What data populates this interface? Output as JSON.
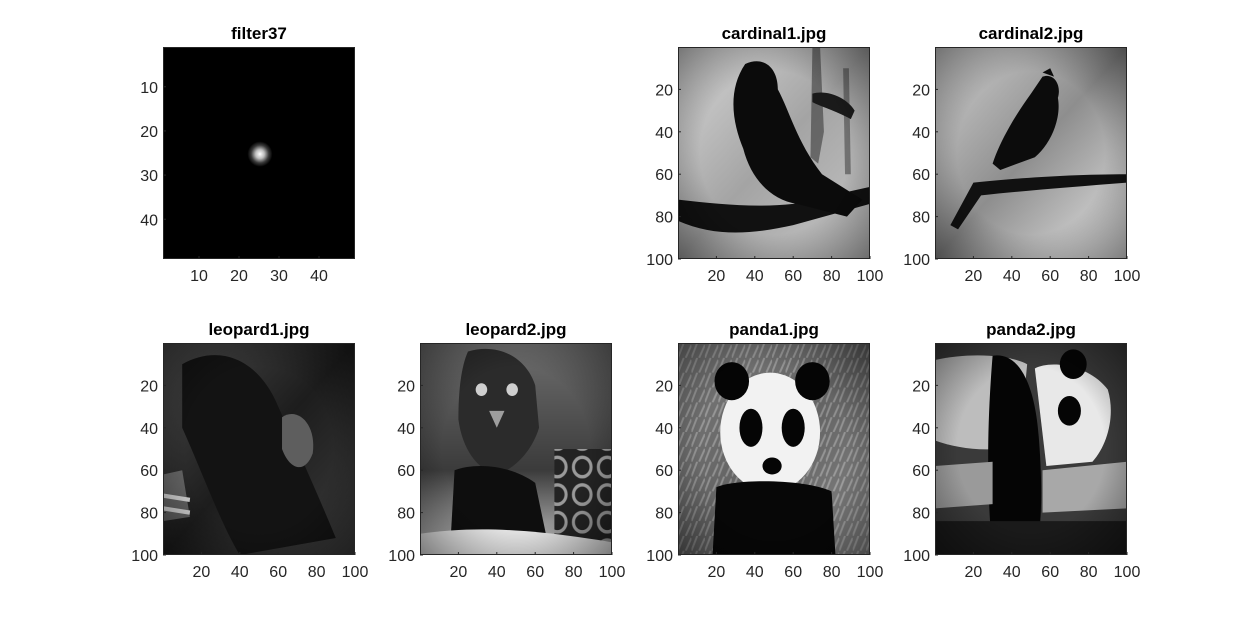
{
  "figure": {
    "background": "#ffffff",
    "colormap": "gray",
    "panels": [
      {
        "id": "filter",
        "title": "filter37",
        "content": "gaussian-spot",
        "xticks": [
          "10",
          "20",
          "30",
          "40"
        ],
        "yticks": [
          "10",
          "20",
          "30",
          "40"
        ],
        "range": [
          1,
          49
        ]
      },
      {
        "id": "cardinal1",
        "title": "cardinal1.jpg",
        "content": "bird-branch-a",
        "xticks": [
          "20",
          "40",
          "60",
          "80",
          "100"
        ],
        "yticks": [
          "20",
          "40",
          "60",
          "80",
          "100"
        ],
        "range": [
          0,
          100
        ]
      },
      {
        "id": "cardinal2",
        "title": "cardinal2.jpg",
        "content": "bird-branch-b",
        "xticks": [
          "20",
          "40",
          "60",
          "80",
          "100"
        ],
        "yticks": [
          "20",
          "40",
          "60",
          "80",
          "100"
        ],
        "range": [
          0,
          100
        ]
      },
      {
        "id": "leopard1",
        "title": "leopard1.jpg",
        "content": "leopard-dark",
        "xticks": [
          "20",
          "40",
          "60",
          "80",
          "100"
        ],
        "yticks": [
          "20",
          "40",
          "60",
          "80",
          "100"
        ],
        "range": [
          0,
          100
        ]
      },
      {
        "id": "leopard2",
        "title": "leopard2.jpg",
        "content": "leopard-face",
        "xticks": [
          "20",
          "40",
          "60",
          "80",
          "100"
        ],
        "yticks": [
          "20",
          "40",
          "60",
          "80",
          "100"
        ],
        "range": [
          0,
          100
        ]
      },
      {
        "id": "panda1",
        "title": "panda1.jpg",
        "content": "panda-face",
        "xticks": [
          "20",
          "40",
          "60",
          "80",
          "100"
        ],
        "yticks": [
          "20",
          "40",
          "60",
          "80",
          "100"
        ],
        "range": [
          0,
          100
        ]
      },
      {
        "id": "panda2",
        "title": "panda2.jpg",
        "content": "panda-log",
        "xticks": [
          "20",
          "40",
          "60",
          "80",
          "100"
        ],
        "yticks": [
          "20",
          "40",
          "60",
          "80",
          "100"
        ],
        "range": [
          0,
          100
        ]
      }
    ]
  }
}
